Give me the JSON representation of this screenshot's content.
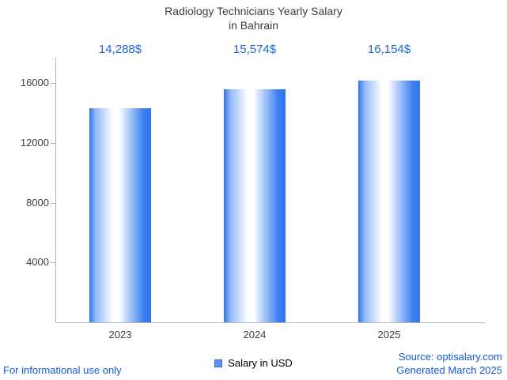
{
  "title": {
    "line1": "Radiology Technicians Yearly Salary",
    "line2": "in Bahrain"
  },
  "legend": {
    "label": "Salary in USD"
  },
  "footer": {
    "disclaimer": "For informational use only",
    "source": "Source: optisalary.com",
    "generated": "Generated March 2025"
  },
  "chart_data": {
    "type": "bar",
    "title": "Radiology Technicians Yearly Salary in Bahrain",
    "categories": [
      "2023",
      "2024",
      "2025"
    ],
    "values": [
      14288,
      15574,
      16154
    ],
    "value_labels": [
      "14,288$",
      "15,574$",
      "16,154$"
    ],
    "series": [
      {
        "name": "Salary in USD",
        "values": [
          14288,
          15574,
          16154
        ]
      }
    ],
    "xlabel": "",
    "ylabel": "",
    "ylim": [
      0,
      17000
    ],
    "yticks": [
      4000,
      8000,
      12000,
      16000
    ],
    "grid": false,
    "legend_position": "bottom",
    "colors": {
      "label_blue": "#1967d2",
      "footer_blue": "#1558d6",
      "bar_blue": "#3d7ef0",
      "axis_gray": "#b5b5b5",
      "text_gray": "#404040"
    }
  }
}
